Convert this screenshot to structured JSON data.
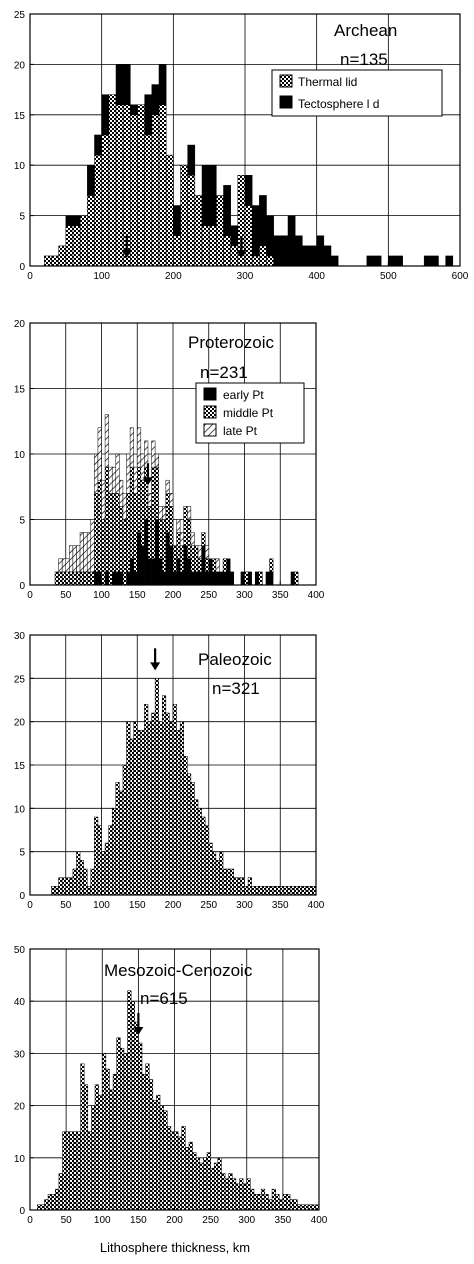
{
  "chart_data": [
    {
      "type": "bar",
      "title": "Archean",
      "subtitle": "n=135",
      "xlim": [
        0,
        600
      ],
      "ylim": [
        0,
        25
      ],
      "xticks": [
        0,
        100,
        200,
        300,
        400,
        500,
        600
      ],
      "yticks": [
        0,
        5,
        10,
        15,
        20,
        25
      ],
      "bin_width": 10,
      "arrows": [
        135,
        295
      ],
      "series": [
        {
          "name": "Thermal lid",
          "pattern": "checker",
          "x": [
            25,
            35,
            45,
            55,
            65,
            75,
            85,
            95,
            105,
            115,
            125,
            135,
            145,
            155,
            165,
            175,
            185,
            195,
            205,
            215,
            225,
            235,
            245,
            255,
            265,
            275,
            285,
            295,
            305,
            315,
            325,
            335
          ],
          "values": [
            1,
            1,
            2,
            4,
            4,
            5,
            7,
            11,
            13,
            17,
            16,
            16,
            15,
            16,
            13,
            15,
            16,
            11,
            3,
            10,
            9,
            7,
            4,
            4,
            7,
            3,
            2,
            9,
            6,
            1,
            2,
            1
          ]
        },
        {
          "name": "Tectosphere lid",
          "pattern": "solid",
          "x": [
            55,
            65,
            85,
            95,
            105,
            115,
            125,
            135,
            145,
            155,
            165,
            175,
            185,
            195,
            205,
            215,
            225,
            235,
            245,
            255,
            265,
            275,
            285,
            295,
            305,
            315,
            325,
            335,
            345,
            355,
            365,
            375,
            385,
            395,
            405,
            415,
            425,
            475,
            485,
            505,
            515,
            535,
            555,
            565,
            585
          ],
          "values": [
            1,
            1,
            3,
            2,
            4,
            0,
            4,
            4,
            1,
            0,
            4,
            3,
            4,
            0,
            3,
            0,
            3,
            0,
            6,
            6,
            0,
            5,
            2,
            0,
            3,
            5,
            5,
            4,
            3,
            3,
            5,
            3,
            2,
            2,
            3,
            2,
            1,
            1,
            1,
            1,
            1,
            0,
            1,
            1,
            1
          ]
        }
      ]
    },
    {
      "type": "bar",
      "title": "Proterozoic",
      "subtitle": "n=231",
      "xlim": [
        0,
        400
      ],
      "ylim": [
        0,
        20
      ],
      "xticks": [
        0,
        50,
        100,
        150,
        200,
        250,
        300,
        350,
        400
      ],
      "yticks": [
        0,
        5,
        10,
        15,
        20
      ],
      "bin_width": 5,
      "arrows": [
        165
      ],
      "series": [
        {
          "name": "early Pt",
          "pattern": "solid",
          "x": [
            92.5,
            97.5,
            107.5,
            117.5,
            122.5,
            127.5,
            137.5,
            142.5,
            147.5,
            152.5,
            157.5,
            162.5,
            167.5,
            172.5,
            177.5,
            182.5,
            187.5,
            192.5,
            197.5,
            202.5,
            207.5,
            212.5,
            217.5,
            222.5,
            227.5,
            232.5,
            237.5,
            242.5,
            247.5,
            252.5,
            257.5,
            262.5,
            267.5,
            272.5,
            277.5,
            282.5,
            297.5,
            307.5,
            317.5,
            332.5,
            337.5,
            367.5
          ],
          "values": [
            1,
            1,
            1,
            1,
            1,
            1,
            1,
            2,
            1,
            4,
            3,
            5,
            2,
            2,
            5,
            2,
            1,
            4,
            3,
            1,
            2,
            1,
            3,
            2,
            1,
            1,
            1,
            3,
            1,
            2,
            1,
            1,
            1,
            1,
            2,
            1,
            1,
            1,
            1,
            1,
            1,
            1
          ]
        },
        {
          "name": "middle Pt",
          "pattern": "checker",
          "x": [
            37.5,
            42.5,
            47.5,
            52.5,
            57.5,
            62.5,
            67.5,
            72.5,
            77.5,
            82.5,
            87.5,
            92.5,
            97.5,
            102.5,
            107.5,
            112.5,
            117.5,
            122.5,
            127.5,
            132.5,
            137.5,
            142.5,
            147.5,
            152.5,
            157.5,
            162.5,
            167.5,
            172.5,
            177.5,
            182.5,
            187.5,
            192.5,
            197.5,
            202.5,
            207.5,
            212.5,
            217.5,
            222.5,
            227.5,
            232.5,
            237.5,
            242.5,
            247.5,
            257.5,
            272.5,
            302.5,
            322.5,
            337.5,
            372.5
          ],
          "values": [
            1,
            1,
            1,
            1,
            1,
            1,
            1,
            1,
            1,
            1,
            1,
            6,
            7,
            5,
            8,
            7,
            6,
            6,
            5,
            5,
            6,
            7,
            6,
            5,
            5,
            4,
            4,
            7,
            4,
            3,
            4,
            3,
            3,
            2,
            2,
            2,
            3,
            3,
            2,
            2,
            1,
            1,
            1,
            1,
            1,
            1,
            1,
            1,
            1
          ]
        },
        {
          "name": "late Pt",
          "pattern": "hatch",
          "x": [
            42.5,
            47.5,
            52.5,
            57.5,
            62.5,
            67.5,
            72.5,
            77.5,
            82.5,
            87.5,
            92.5,
            97.5,
            102.5,
            107.5,
            112.5,
            117.5,
            122.5,
            127.5,
            132.5,
            137.5,
            142.5,
            147.5,
            152.5,
            157.5,
            162.5,
            167.5,
            172.5,
            177.5,
            182.5,
            187.5,
            192.5,
            197.5,
            207.5,
            212.5,
            222.5,
            227.5,
            237.5,
            247.5,
            262.5
          ],
          "values": [
            1,
            1,
            1,
            2,
            2,
            2,
            3,
            3,
            3,
            4,
            3,
            4,
            3,
            4,
            2,
            2,
            3,
            2,
            2,
            3,
            3,
            2,
            3,
            2,
            2,
            1,
            2,
            1,
            1,
            1,
            1,
            1,
            1,
            1,
            1,
            1,
            1,
            1,
            1
          ]
        }
      ]
    },
    {
      "type": "bar",
      "title": "Paleozoic",
      "subtitle": "n=321",
      "xlim": [
        0,
        400
      ],
      "ylim": [
        0,
        30
      ],
      "xticks": [
        0,
        50,
        100,
        150,
        200,
        250,
        300,
        350,
        400
      ],
      "yticks": [
        0,
        5,
        10,
        15,
        20,
        25,
        30
      ],
      "bin_width": 5,
      "arrows": [
        175
      ],
      "series": [
        {
          "name": "",
          "pattern": "checker",
          "x": [
            32.5,
            37.5,
            42.5,
            47.5,
            52.5,
            57.5,
            62.5,
            67.5,
            72.5,
            77.5,
            82.5,
            87.5,
            92.5,
            97.5,
            102.5,
            107.5,
            112.5,
            117.5,
            122.5,
            127.5,
            132.5,
            137.5,
            142.5,
            147.5,
            152.5,
            157.5,
            162.5,
            167.5,
            172.5,
            177.5,
            182.5,
            187.5,
            192.5,
            197.5,
            202.5,
            207.5,
            212.5,
            217.5,
            222.5,
            227.5,
            232.5,
            237.5,
            242.5,
            247.5,
            252.5,
            257.5,
            262.5,
            267.5,
            272.5,
            277.5,
            282.5,
            287.5,
            292.5,
            297.5,
            302.5,
            307.5,
            312.5,
            317.5,
            322.5,
            327.5,
            332.5,
            337.5,
            342.5,
            347.5,
            352.5,
            357.5,
            362.5,
            367.5,
            372.5,
            377.5,
            382.5,
            387.5,
            392.5,
            397.5
          ],
          "values": [
            1,
            1,
            2,
            2,
            2,
            2,
            3,
            5,
            4,
            3,
            1,
            3,
            9,
            8,
            5,
            6,
            8,
            10,
            13,
            12,
            15,
            20,
            18,
            20,
            19,
            19,
            22,
            20,
            21,
            25,
            20,
            23,
            21,
            20,
            22,
            19,
            20,
            16,
            14,
            13,
            11,
            10,
            9,
            8,
            6,
            5,
            4,
            5,
            3,
            3,
            3,
            2,
            2,
            2,
            1,
            2,
            1,
            1,
            1,
            1,
            1,
            1,
            1,
            1,
            1,
            1,
            1,
            1,
            1,
            1,
            1,
            1,
            1,
            1
          ]
        }
      ]
    },
    {
      "type": "bar",
      "title": "Mesozoic-Cenozoic",
      "subtitle": "n=615",
      "xlim": [
        0,
        400
      ],
      "ylim": [
        0,
        50
      ],
      "xticks": [
        0,
        50,
        100,
        150,
        200,
        250,
        300,
        350,
        400
      ],
      "yticks": [
        0,
        10,
        20,
        30,
        40,
        50
      ],
      "bin_width": 5,
      "arrows": [
        150
      ],
      "xlabel": "Lithosphere thickness, km",
      "series": [
        {
          "name": "",
          "pattern": "checker",
          "x": [
            12.5,
            17.5,
            22.5,
            27.5,
            32.5,
            37.5,
            42.5,
            47.5,
            52.5,
            57.5,
            62.5,
            67.5,
            72.5,
            77.5,
            82.5,
            87.5,
            92.5,
            97.5,
            102.5,
            107.5,
            112.5,
            117.5,
            122.5,
            127.5,
            132.5,
            137.5,
            142.5,
            147.5,
            152.5,
            157.5,
            162.5,
            167.5,
            172.5,
            177.5,
            182.5,
            187.5,
            192.5,
            197.5,
            202.5,
            207.5,
            212.5,
            217.5,
            222.5,
            227.5,
            232.5,
            237.5,
            242.5,
            247.5,
            252.5,
            257.5,
            262.5,
            267.5,
            272.5,
            277.5,
            282.5,
            287.5,
            292.5,
            297.5,
            302.5,
            307.5,
            312.5,
            317.5,
            322.5,
            327.5,
            332.5,
            337.5,
            342.5,
            347.5,
            352.5,
            357.5,
            362.5,
            367.5,
            372.5,
            377.5,
            382.5,
            387.5,
            392.5,
            397.5
          ],
          "values": [
            1,
            1,
            2,
            3,
            3,
            4,
            7,
            15,
            15,
            15,
            15,
            15,
            28,
            24,
            15,
            20,
            24,
            22,
            30,
            27,
            23,
            26,
            33,
            31,
            30,
            42,
            40,
            36,
            32,
            26,
            28,
            25,
            21,
            22,
            20,
            19,
            16,
            15,
            15,
            14,
            16,
            12,
            13,
            11,
            10,
            9,
            10,
            11,
            8,
            9,
            10,
            7,
            6,
            7,
            6,
            5,
            6,
            5,
            6,
            4,
            3,
            3,
            4,
            3,
            2,
            4,
            3,
            2,
            3,
            3,
            2,
            2,
            1,
            1,
            1,
            1,
            1,
            1
          ]
        }
      ]
    }
  ],
  "legend_archean": [
    "Thermal lid",
    "Tectosphere l d"
  ],
  "legend_proterozoic": [
    "early Pt",
    "middle Pt",
    "late Pt"
  ]
}
